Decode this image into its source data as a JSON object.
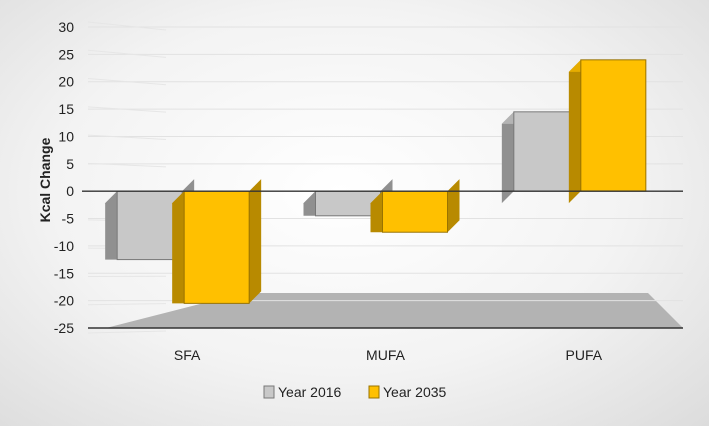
{
  "chart_data": {
    "type": "bar",
    "style": "3d-clustered-column",
    "categories": [
      "SFA",
      "MUFA",
      "PUFA"
    ],
    "series": [
      {
        "name": "Year 2016",
        "values": [
          -12.5,
          -4.5,
          14.5
        ],
        "color": "#c8c8c8"
      },
      {
        "name": "Year 2035",
        "values": [
          -20.5,
          -7.5,
          24.0
        ],
        "color": "#ffc000"
      }
    ],
    "title": "",
    "xlabel": "",
    "ylabel": "Kcal Change",
    "ylim": [
      -25,
      30
    ],
    "yticks": [
      30,
      25,
      20,
      15,
      10,
      5,
      0,
      -5,
      -10,
      -15,
      -20,
      -25
    ],
    "grid": true,
    "legend_position": "bottom",
    "floor_color": "#b3b3b3"
  }
}
